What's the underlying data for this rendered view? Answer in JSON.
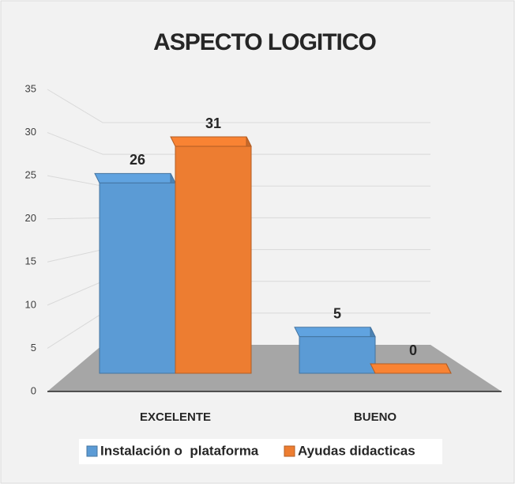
{
  "chart_data": {
    "type": "bar3d",
    "title": "ASPECTO LOGITICO",
    "categories": [
      "EXCELENTE",
      "BUENO"
    ],
    "series": [
      {
        "name": "Instalación o  plataforma",
        "color": "#5b9bd5",
        "values": [
          26,
          5
        ]
      },
      {
        "name": "Ayudas didacticas",
        "color": "#ed7d31",
        "values": [
          31,
          0
        ]
      }
    ],
    "ylim": [
      0,
      35
    ],
    "yticks": [
      0,
      5,
      10,
      15,
      20,
      25,
      30,
      35
    ],
    "grid": true,
    "legend": "bottom"
  }
}
